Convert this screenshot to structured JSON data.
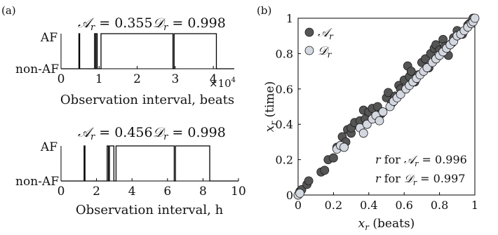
{
  "colors": {
    "line": "#000000",
    "dark_marker": "#555555",
    "light_marker": "#d4d8e0",
    "marker_edge": "#1a1a1a",
    "axis": "#000000"
  },
  "panel_labels": {
    "a": "(a)",
    "b": "(b)"
  },
  "chart_data": [
    {
      "type": "line",
      "panel": "a-top",
      "annotation_A": "𝒜",
      "annotation_A_sub": "r",
      "annotation_A_value": " = 0.355",
      "annotation_D": "𝒟",
      "annotation_D_sub": "r",
      "annotation_D_value": " = 0.998",
      "ytick_labels": [
        "AF",
        "non-AF"
      ],
      "xtick_labels": [
        "0",
        "1",
        "2",
        "3",
        "4"
      ],
      "xticks": [
        0,
        1,
        2,
        3,
        4
      ],
      "xlim": [
        0,
        4.55
      ],
      "x_exponent_label": "×10",
      "x_exponent_power": "4",
      "xlabel": "Observation interval, beats",
      "x": [
        0,
        0.47,
        0.47,
        0.49,
        0.49,
        0.88,
        0.88,
        0.91,
        0.91,
        0.92,
        0.92,
        0.95,
        0.95,
        1.05,
        1.05,
        2.94,
        2.94,
        2.97,
        2.97,
        4.08,
        4.08,
        4.55
      ],
      "y": [
        0,
        0,
        1,
        1,
        0,
        0,
        1,
        1,
        0,
        0,
        1,
        1,
        0,
        0,
        1,
        1,
        0,
        0,
        1,
        1,
        0,
        0
      ]
    },
    {
      "type": "line",
      "panel": "a-bottom",
      "annotation_A": "𝒜",
      "annotation_A_sub": "r",
      "annotation_A_value": " = 0.456",
      "annotation_D": "𝒟",
      "annotation_D_sub": "r",
      "annotation_D_value": " = 0.998",
      "ytick_labels": [
        "AF",
        "non-AF"
      ],
      "xtick_labels": [
        "0",
        "2",
        "4",
        "6",
        "8",
        "10"
      ],
      "xticks": [
        0,
        2,
        4,
        6,
        8,
        10
      ],
      "xlim": [
        0,
        10
      ],
      "xlabel": "Observation interval, h",
      "x": [
        0,
        1.3,
        1.3,
        1.35,
        1.35,
        2.6,
        2.6,
        2.67,
        2.67,
        2.73,
        2.73,
        2.98,
        2.98,
        3.1,
        3.1,
        6.38,
        6.38,
        6.45,
        6.45,
        8.38,
        8.38,
        10
      ],
      "y": [
        0,
        0,
        1,
        1,
        0,
        0,
        1,
        1,
        0,
        0,
        1,
        1,
        0,
        0,
        1,
        1,
        0,
        0,
        1,
        1,
        0,
        0
      ]
    },
    {
      "type": "scatter",
      "panel": "b",
      "xlim": [
        0,
        1
      ],
      "ylim": [
        0,
        1
      ],
      "xticks": [
        0,
        0.2,
        0.4,
        0.6,
        0.8,
        1
      ],
      "yticks": [
        0,
        0.2,
        0.4,
        0.6,
        0.8,
        1
      ],
      "xtick_labels": [
        "0",
        "0.2",
        "0.4",
        "0.6",
        "0.8",
        "1"
      ],
      "ytick_labels": [
        "0",
        "0.2",
        "0.4",
        "0.6",
        "0.8",
        "1"
      ],
      "xlabel_var": "x",
      "xlabel_sub": "r",
      "xlabel_rest": " (beats)",
      "ylabel_var": "x",
      "ylabel_sub": "r",
      "ylabel_rest": " (time)",
      "legend": [
        {
          "name": "𝒜",
          "sub": "r",
          "color": "#555555"
        },
        {
          "name": "𝒟",
          "sub": "r",
          "color": "#d4d8e0"
        }
      ],
      "annotations": [
        {
          "pre": "r",
          "mid": " for ",
          "sym": "𝒜",
          "sub": "r",
          "value": " = 0.996"
        },
        {
          "pre": "r",
          "mid": " for ",
          "sym": "𝒟",
          "sub": "r",
          "value": " = 0.997"
        }
      ],
      "series": [
        {
          "name": "𝒜r",
          "x": [
            0.0,
            0.01,
            0.02,
            0.05,
            0.06,
            0.13,
            0.15,
            0.17,
            0.2,
            0.22,
            0.25,
            0.27,
            0.28,
            0.3,
            0.3,
            0.32,
            0.35,
            0.37,
            0.38,
            0.4,
            0.42,
            0.45,
            0.47,
            0.5,
            0.51,
            0.53,
            0.55,
            0.57,
            0.58,
            0.6,
            0.62,
            0.63,
            0.64,
            0.66,
            0.68,
            0.7,
            0.72,
            0.74,
            0.75,
            0.77,
            0.78,
            0.8,
            0.82,
            0.83,
            0.85,
            0.87,
            0.88,
            0.9,
            0.93,
            0.96,
            0.97,
            0.99
          ],
          "y": [
            0.0,
            0.02,
            0.03,
            0.06,
            0.08,
            0.13,
            0.14,
            0.2,
            0.21,
            0.27,
            0.33,
            0.3,
            0.37,
            0.35,
            0.38,
            0.41,
            0.42,
            0.48,
            0.43,
            0.47,
            0.49,
            0.5,
            0.46,
            0.55,
            0.58,
            0.52,
            0.56,
            0.62,
            0.6,
            0.65,
            0.73,
            0.67,
            0.7,
            0.64,
            0.68,
            0.75,
            0.77,
            0.72,
            0.8,
            0.83,
            0.85,
            0.82,
            0.88,
            0.84,
            0.79,
            0.86,
            0.89,
            0.93,
            0.91,
            0.96,
            0.97,
            1.0
          ]
        },
        {
          "name": "𝒟r",
          "x": [
            0.0,
            0.01,
            0.22,
            0.24,
            0.26,
            0.35,
            0.37,
            0.39,
            0.42,
            0.44,
            0.46,
            0.48,
            0.52,
            0.54,
            0.56,
            0.58,
            0.61,
            0.63,
            0.65,
            0.67,
            0.69,
            0.71,
            0.73,
            0.76,
            0.78,
            0.8,
            0.82,
            0.84,
            0.86,
            0.88,
            0.9,
            0.92,
            0.94,
            0.96,
            0.98,
            0.99,
            1.0
          ],
          "y": [
            0.0,
            0.01,
            0.26,
            0.28,
            0.27,
            0.38,
            0.35,
            0.4,
            0.43,
            0.45,
            0.42,
            0.47,
            0.5,
            0.53,
            0.55,
            0.57,
            0.6,
            0.62,
            0.64,
            0.66,
            0.68,
            0.7,
            0.72,
            0.75,
            0.77,
            0.79,
            0.81,
            0.83,
            0.85,
            0.87,
            0.9,
            0.91,
            0.93,
            0.95,
            0.97,
            0.98,
            1.0
          ]
        }
      ]
    }
  ]
}
